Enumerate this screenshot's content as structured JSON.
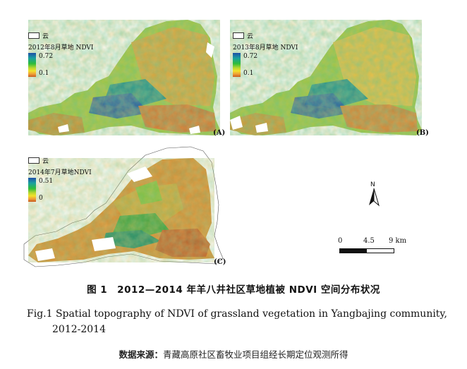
{
  "panels": [
    {
      "label": "(A)",
      "cloud_label": "云",
      "legend_title": "2012年8月草地 NDVI",
      "max": "0.72",
      "min": "0.1"
    },
    {
      "label": "(B)",
      "cloud_label": "云",
      "legend_title": "2013年8月草地 NDVI",
      "max": "0.72",
      "min": "0.1"
    },
    {
      "label": "(C)",
      "cloud_label": "云",
      "legend_title": "2014年7月草地NDVI",
      "max": "0.51",
      "min": "0"
    }
  ],
  "north_arrow": {
    "letter": "N"
  },
  "scale_bar": {
    "ticks": [
      "0",
      "4.5",
      "9 km"
    ]
  },
  "colors": {
    "ndvi_high": "#1f4fa8",
    "ndvi_mid_high": "#1aa0a0",
    "ndvi_mid": "#2ebd3a",
    "ndvi_mid_low": "#f2e22a",
    "ndvi_low": "#c85a1e",
    "cloud": "#ffffff"
  },
  "caption": {
    "title_cn": "图 1　2012—2014 年羊八井社区草地植被 NDVI 空间分布状况",
    "title_en_line1": "Fig.1  Spatial topography of NDVI of grassland vegetation in Yangbajing community,",
    "title_en_line2": "2012-2014",
    "source_label": "数据来源：",
    "source_text": "青藏高原社区畜牧业项目组经长期定位观测所得"
  }
}
